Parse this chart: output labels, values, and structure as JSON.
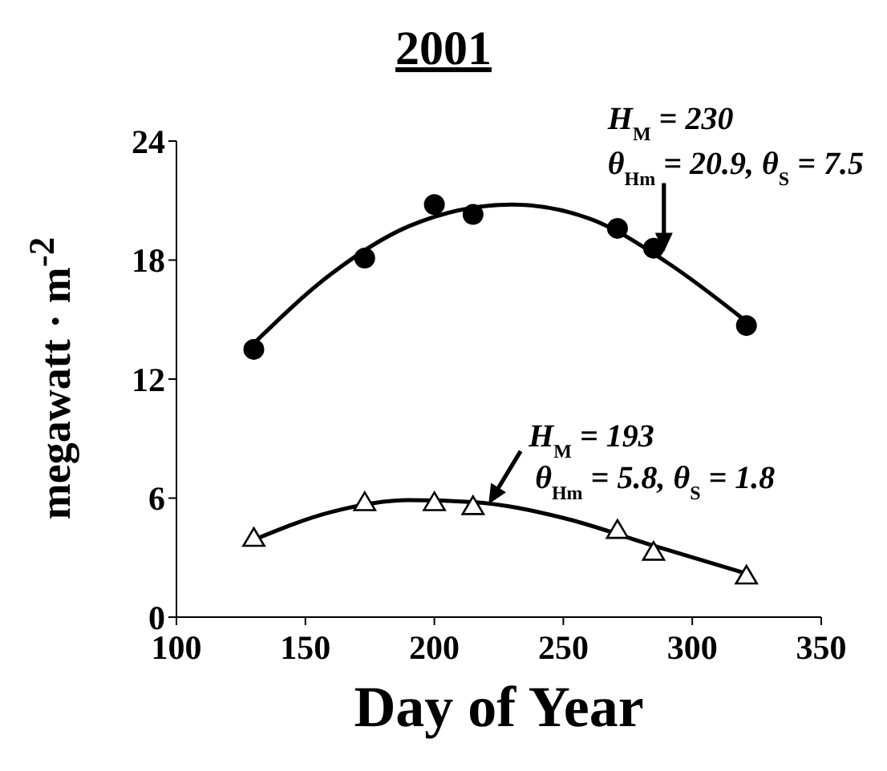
{
  "chart_data": {
    "type": "scatter",
    "title": "2001",
    "xlabel": "Day of Year",
    "ylabel": "megawatt · m$^{-2}$",
    "xlim": [
      100,
      350
    ],
    "xticks": [
      100,
      150,
      200,
      250,
      300,
      350
    ],
    "ylim": [
      0,
      24
    ],
    "yticks": [
      0,
      6,
      12,
      18,
      24
    ],
    "grid": false,
    "legend": false,
    "series": [
      {
        "marker": "circle",
        "color": "#000000",
        "x": [
          130,
          173,
          200,
          215,
          271,
          285,
          321
        ],
        "values": [
          13.5,
          18.1,
          20.8,
          20.3,
          19.6,
          18.6,
          14.7
        ]
      },
      {
        "marker": "triangle",
        "color": "#000000",
        "x": [
          130,
          173,
          200,
          215,
          271,
          285,
          321
        ],
        "values": [
          4.0,
          5.8,
          5.8,
          5.6,
          4.4,
          3.3,
          2.1
        ]
      },
      {
        "type": "line",
        "marker": "none",
        "color": "#000000",
        "x": [
          130,
          160,
          190,
          230,
          260,
          290,
          321
        ],
        "values": [
          13.8,
          17.3,
          19.7,
          20.8,
          20.1,
          17.9,
          14.9
        ]
      },
      {
        "type": "line",
        "marker": "none",
        "color": "#000000",
        "x": [
          130,
          160,
          190,
          215,
          250,
          285,
          321
        ],
        "values": [
          3.9,
          5.3,
          5.9,
          5.8,
          5.0,
          3.6,
          2.2
        ]
      }
    ],
    "annotations": [
      "H$_{M}$ = 230",
      {
        "text": "θ$_{Hm}$ = 20.9, θ$_{S}$ = 7.5",
        "x": 289,
        "y": 18.4
      },
      "H$_{M}$ = 193",
      {
        "text": "θ$_{Hm}$ = 5.8, θ$_{S}$ = 1.8",
        "x": 221,
        "y": 5.7
      }
    ]
  }
}
